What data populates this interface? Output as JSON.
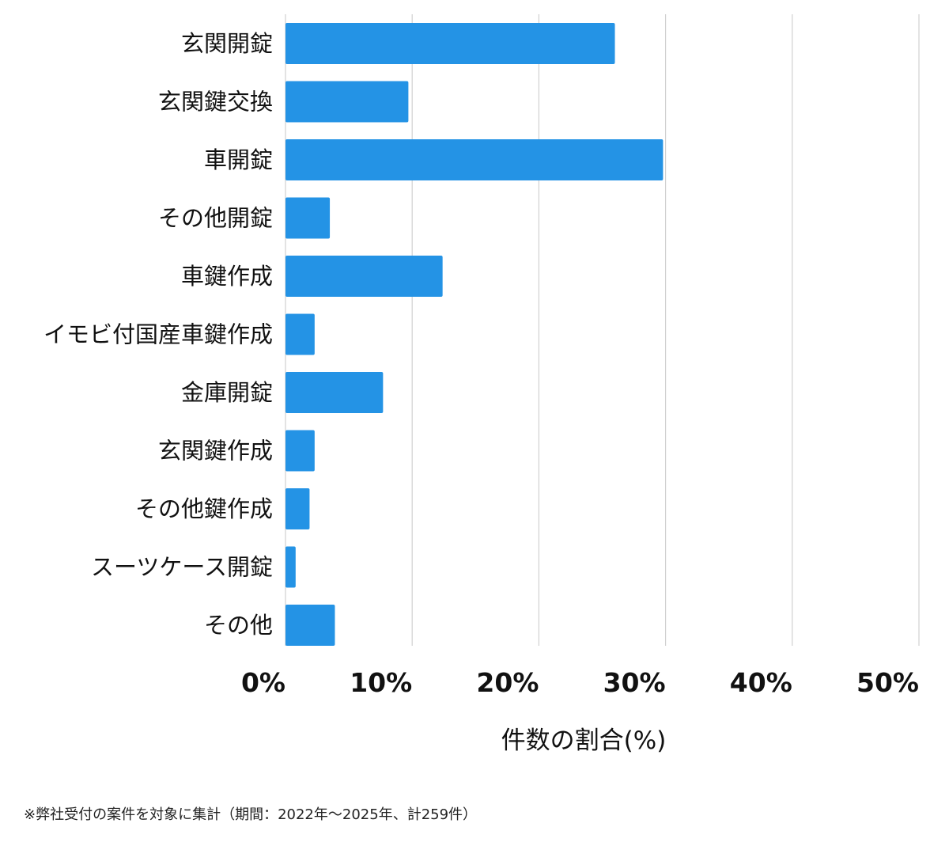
{
  "chart_data": {
    "type": "bar",
    "orientation": "horizontal",
    "categories": [
      "玄関開錠",
      "玄関鍵交換",
      "車開錠",
      "その他開錠",
      "車鍵作成",
      "イモビ付国産車鍵作成",
      "金庫開錠",
      "玄関鍵作成",
      "その他鍵作成",
      "スーツケース開錠",
      "その他"
    ],
    "values": [
      26.0,
      9.7,
      29.8,
      3.5,
      12.4,
      2.3,
      7.7,
      2.3,
      1.9,
      0.8,
      3.9
    ],
    "title": "",
    "xlabel": "件数の割合(%)",
    "ylabel": "",
    "xlim": [
      0,
      50
    ],
    "xticks": [
      0,
      10,
      20,
      30,
      40,
      50
    ],
    "xtick_labels": [
      "0%",
      "10%",
      "20%",
      "30%",
      "40%",
      "50%"
    ],
    "grid": "vertical",
    "legend": "none",
    "bar_color": "#2493e5",
    "grid_color": "#d0d0d0"
  },
  "footnote": "※弊社受付の案件を対象に集計（期間：2022年〜2025年、計259件）"
}
